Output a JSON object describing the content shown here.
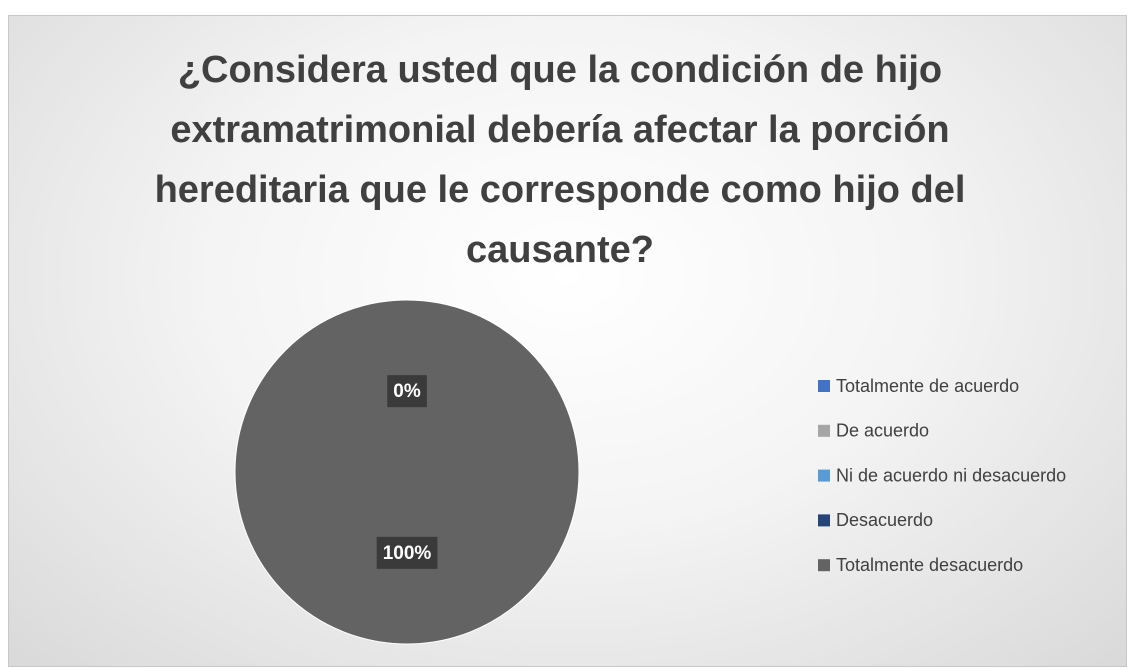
{
  "chart_data": {
    "type": "pie",
    "title": "¿Considera usted que la condición de hijo extramatrimonial debería afectar la porción hereditaria que le corresponde como hijo del causante?",
    "categories": [
      "Totalmente de acuerdo",
      "De acuerdo",
      "Ni de acuerdo ni desacuerdo",
      "Desacuerdo",
      "Totalmente desacuerdo"
    ],
    "values": [
      0,
      0,
      0,
      0,
      100
    ],
    "value_labels": [
      "0%",
      null,
      null,
      null,
      "100%"
    ],
    "colors": [
      "#4472c4",
      "#a5a5a5",
      "#5b9bd5",
      "#264478",
      "#636363"
    ],
    "legend": "right"
  }
}
